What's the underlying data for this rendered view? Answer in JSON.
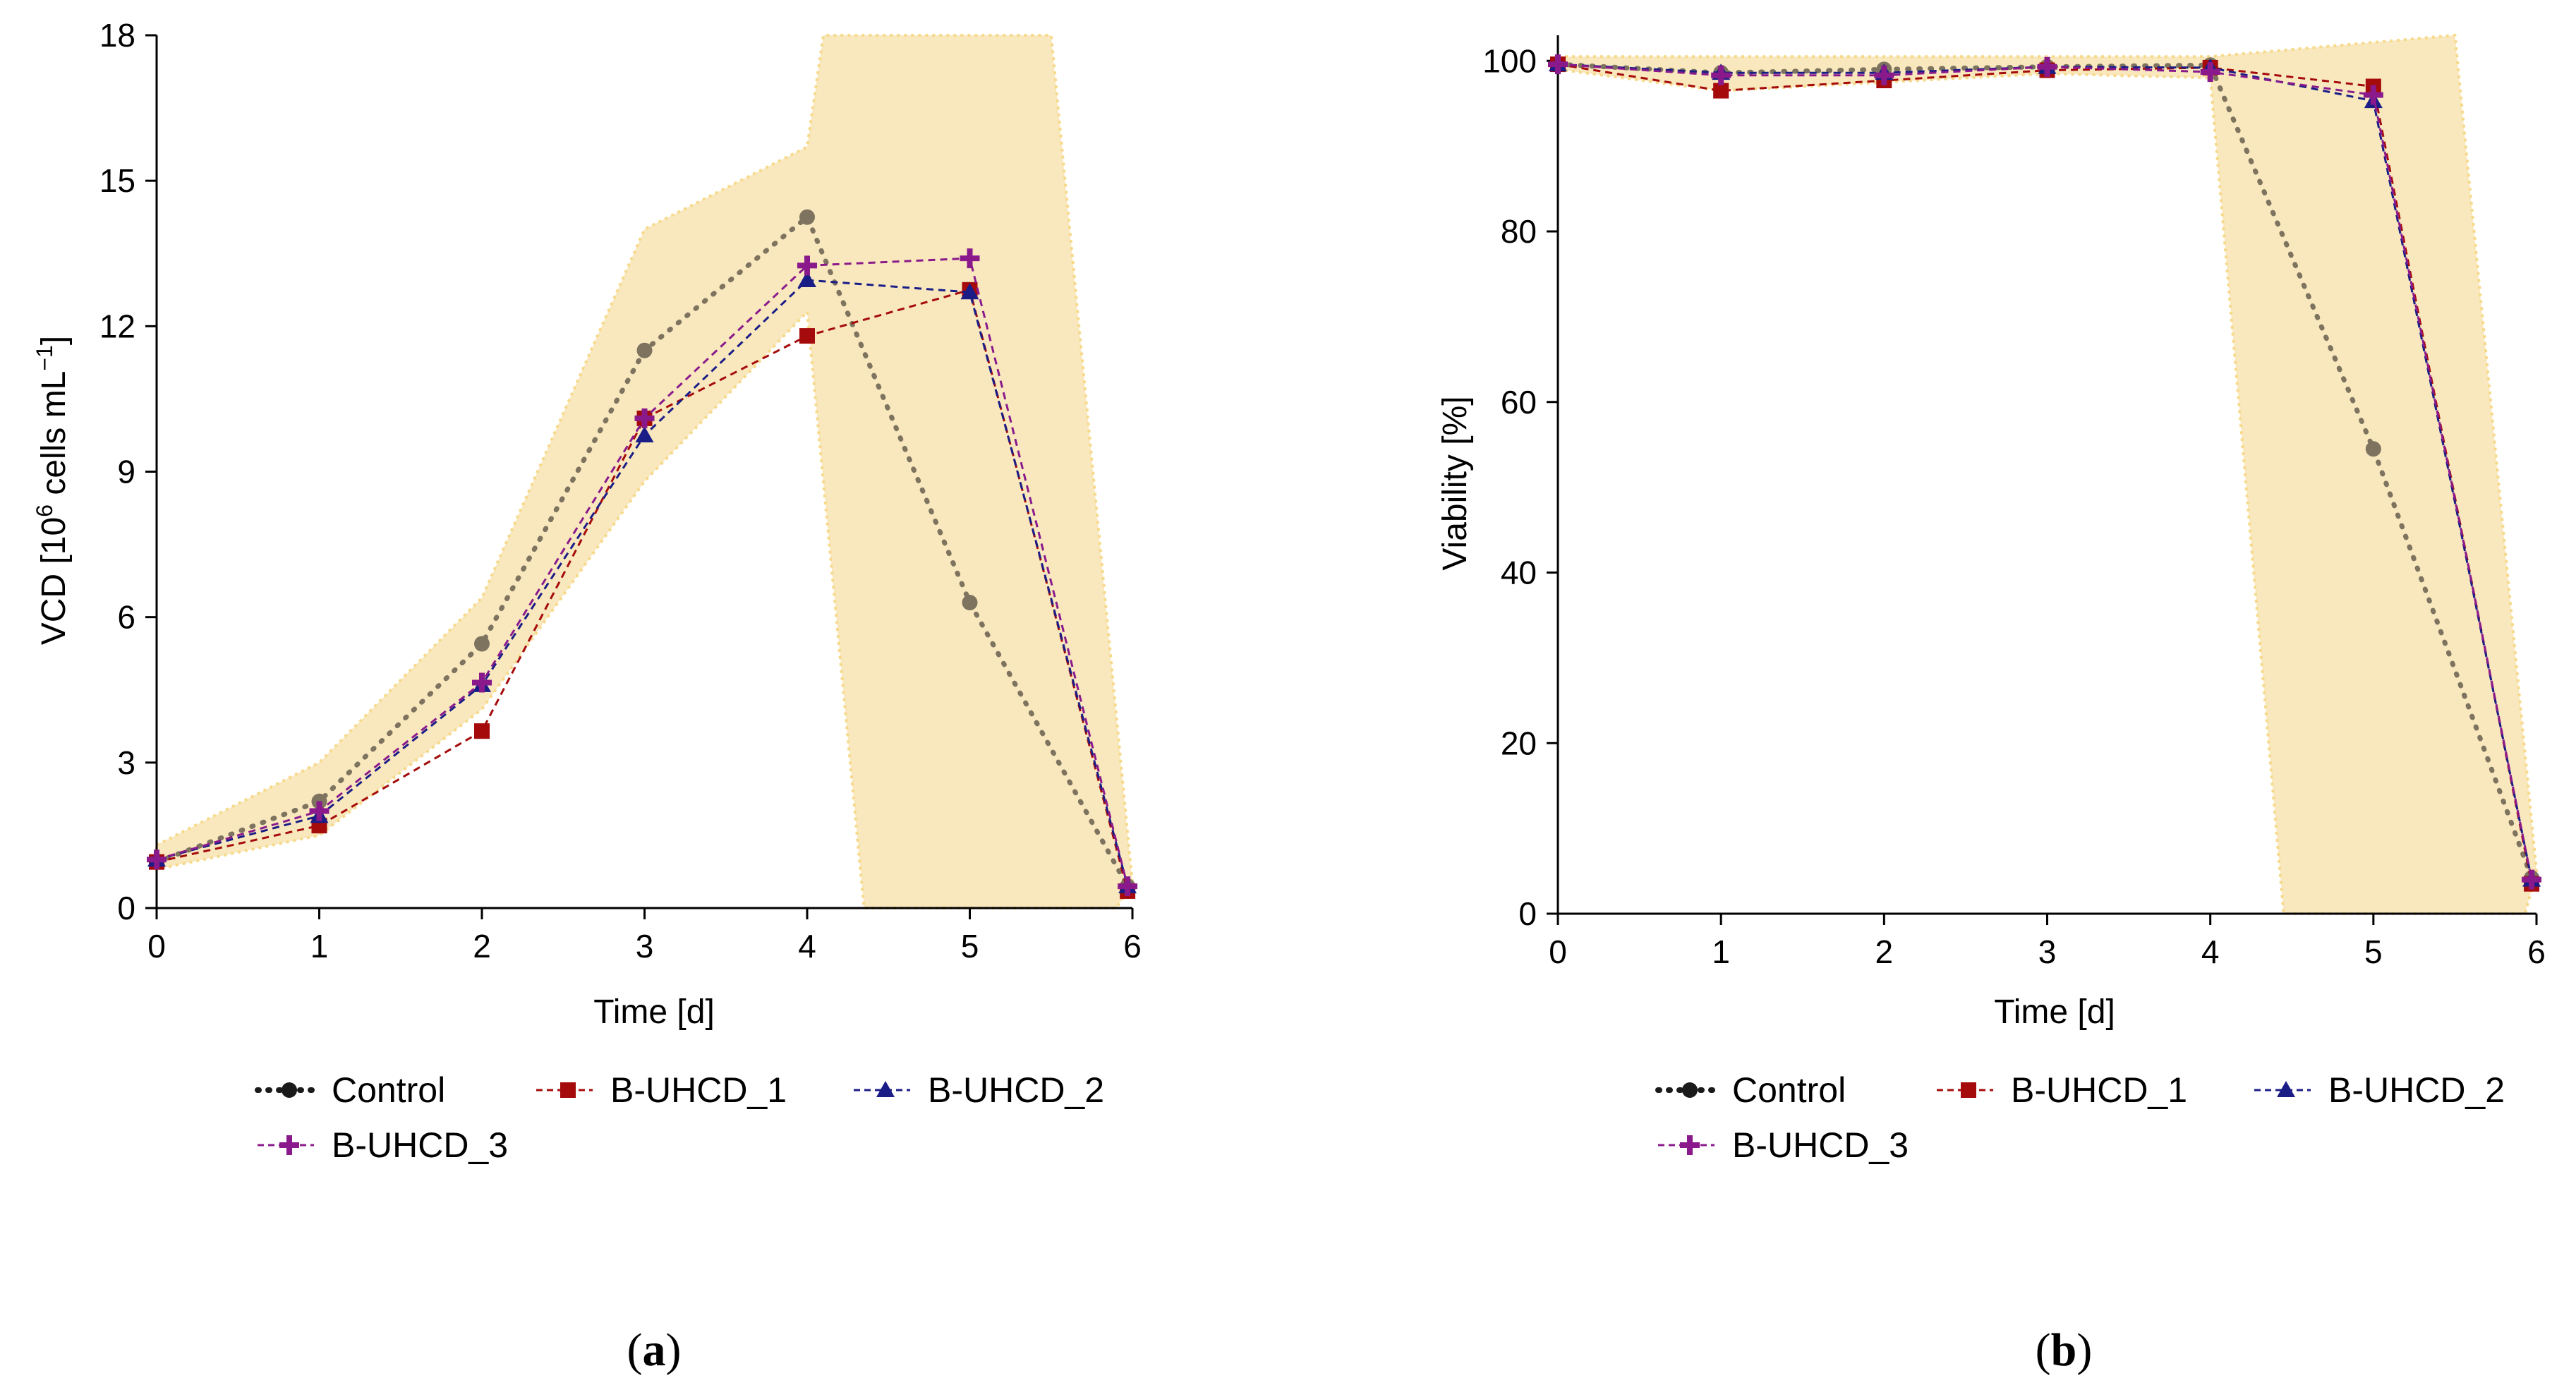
{
  "colors": {
    "band": "#f9e8bd",
    "band_edge": "#f6d98a",
    "axis": "#000000"
  },
  "series_style": [
    {
      "name": "Control",
      "color": "#7d735e",
      "legend_color": "#1a1a1a",
      "marker": "circle",
      "dash": "dotted"
    },
    {
      "name": "B-UHCD_1",
      "color": "#a50b0b",
      "legend_color": "#a50b0b",
      "marker": "square",
      "dash": "dashed"
    },
    {
      "name": "B-UHCD_2",
      "color": "#1b1d87",
      "legend_color": "#1b1d87",
      "marker": "triangle",
      "dash": "dashed"
    },
    {
      "name": "B-UHCD_3",
      "color": "#8a1a8c",
      "legend_color": "#8a1a8c",
      "marker": "plus",
      "dash": "dashed"
    }
  ],
  "chart_data": [
    {
      "type": "line",
      "panel_label": "(a)",
      "panel_letter": "a",
      "xlabel": "Time [d]",
      "ylabel_main": "VCD [10",
      "ylabel_sup1": "6",
      "ylabel_mid": " cells mL",
      "ylabel_sup2": "−1",
      "ylabel_end": "]",
      "xlim": [
        0,
        6
      ],
      "ylim": [
        0,
        18
      ],
      "xticks": [
        0,
        1,
        2,
        3,
        4,
        5,
        6
      ],
      "yticks": [
        0,
        3,
        6,
        9,
        12,
        15,
        18
      ],
      "band_upper": [
        [
          0,
          1.3
        ],
        [
          1,
          3.0
        ],
        [
          2,
          6.4
        ],
        [
          3,
          14.0
        ],
        [
          4,
          15.7
        ],
        [
          4.1,
          18
        ],
        [
          5.5,
          18
        ],
        [
          6,
          0.5
        ]
      ],
      "band_lower": [
        [
          5.9,
          0
        ],
        [
          4.35,
          0
        ],
        [
          4,
          12.3
        ],
        [
          3,
          8.8
        ],
        [
          2,
          4.1
        ],
        [
          1,
          1.5
        ],
        [
          0,
          0.8
        ]
      ],
      "x": [
        0,
        1,
        2,
        3,
        4,
        5,
        5.97
      ],
      "series": [
        {
          "name": "Control",
          "values": [
            0.95,
            2.2,
            5.45,
            11.5,
            14.25,
            6.3,
            0.45
          ]
        },
        {
          "name": "B-UHCD_1",
          "values": [
            0.95,
            1.7,
            3.65,
            10.1,
            11.8,
            12.75,
            0.35
          ]
        },
        {
          "name": "B-UHCD_2",
          "values": [
            1.0,
            1.9,
            4.6,
            9.75,
            12.95,
            12.7,
            0.45
          ]
        },
        {
          "name": "B-UHCD_3",
          "values": [
            1.0,
            2.0,
            4.65,
            10.1,
            13.25,
            13.4,
            0.45
          ]
        }
      ]
    },
    {
      "type": "line",
      "panel_label": "(b)",
      "panel_letter": "b",
      "xlabel": "Time [d]",
      "ylabel_main": "Viability [%]",
      "xlim": [
        0,
        6
      ],
      "ylim": [
        0,
        103
      ],
      "xticks": [
        0,
        1,
        2,
        3,
        4,
        5,
        6
      ],
      "yticks": [
        0,
        20,
        40,
        60,
        80,
        100
      ],
      "band_upper": [
        [
          0,
          100.5
        ],
        [
          4,
          100.5
        ],
        [
          5.5,
          103
        ],
        [
          6,
          5
        ]
      ],
      "band_lower": [
        [
          5.93,
          0
        ],
        [
          4.45,
          0
        ],
        [
          4,
          98
        ],
        [
          3,
          98.5
        ],
        [
          2,
          97.5
        ],
        [
          1,
          96.5
        ],
        [
          0,
          99
        ]
      ],
      "x": [
        0,
        1,
        2,
        3,
        4,
        5,
        5.97
      ],
      "series": [
        {
          "name": "Control",
          "values": [
            99.6,
            98.6,
            99.0,
            99.3,
            99.5,
            54.5,
            4.2
          ]
        },
        {
          "name": "B-UHCD_1",
          "values": [
            99.6,
            96.5,
            97.7,
            98.9,
            99.2,
            97.0,
            3.5
          ]
        },
        {
          "name": "B-UHCD_2",
          "values": [
            99.6,
            98.6,
            98.6,
            99.3,
            99.2,
            95.3,
            4.0
          ]
        },
        {
          "name": "B-UHCD_3",
          "values": [
            99.6,
            98.3,
            98.3,
            99.3,
            98.7,
            96.0,
            4.0
          ]
        }
      ]
    }
  ]
}
